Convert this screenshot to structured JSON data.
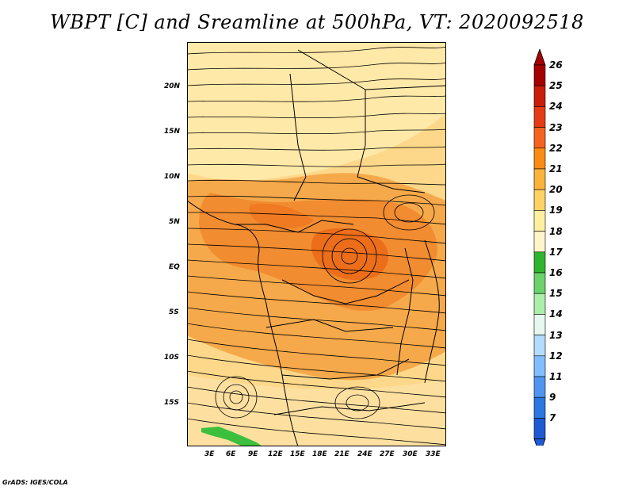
{
  "title": "WBPT [C] and Sreamline at 500hPa, VT: 2020092518",
  "footer": "GrADS: IGES/COLA",
  "lat_labels": [
    "20N",
    "15N",
    "10N",
    "5N",
    "EQ",
    "5S",
    "10S",
    "15S"
  ],
  "lon_labels": [
    "3E",
    "6E",
    "9E",
    "12E",
    "15E",
    "18E",
    "21E",
    "24E",
    "27E",
    "30E",
    "33E"
  ],
  "colorbar": {
    "labels": [
      "26",
      "25",
      "24",
      "23",
      "22",
      "21",
      "20",
      "19",
      "18",
      "17",
      "16",
      "15",
      "14",
      "13",
      "12",
      "11",
      "9",
      "7"
    ],
    "colors": [
      "#a50000",
      "#c81e0a",
      "#e63c14",
      "#f5641e",
      "#f88c14",
      "#fab43c",
      "#fdd264",
      "#fff0a0",
      "#fff5c8",
      "#2eb42e",
      "#6cd26c",
      "#aaeeaa",
      "#e6f8f0",
      "#b4dcff",
      "#82beff",
      "#5096f0",
      "#2a78e0",
      "#1e5ad2"
    ]
  }
}
